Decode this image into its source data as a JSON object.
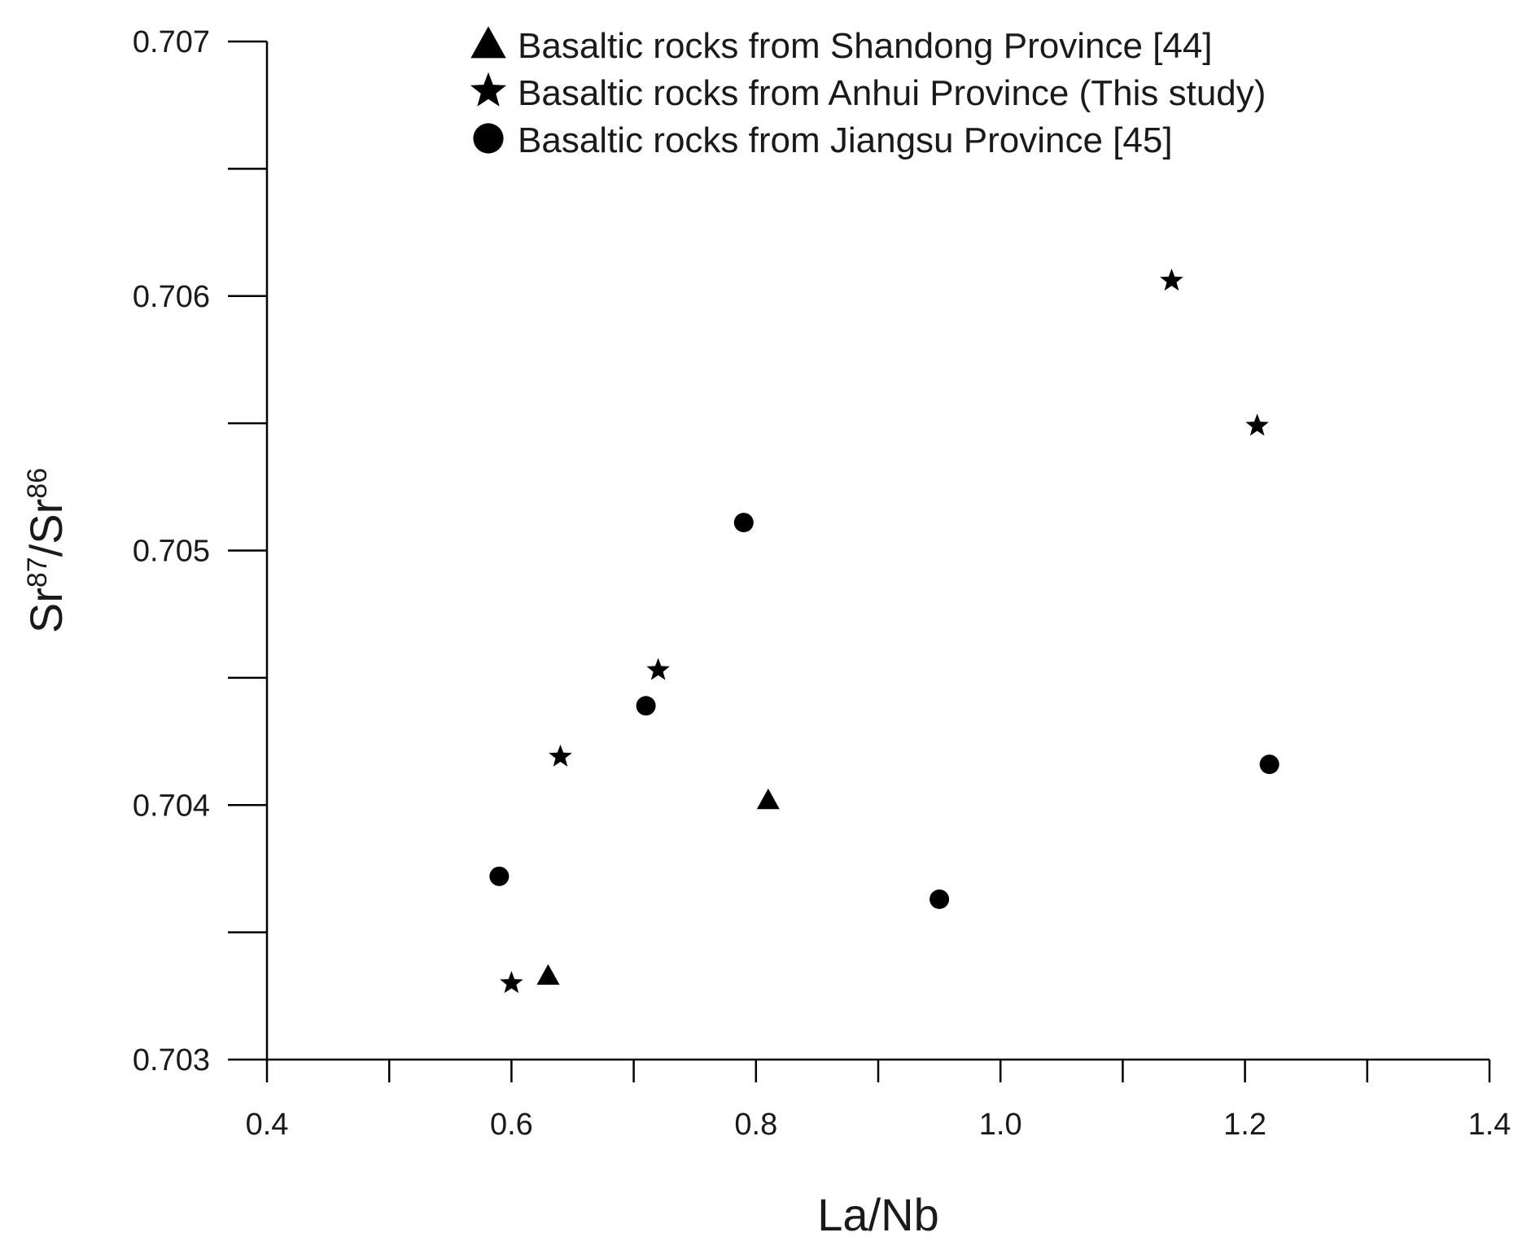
{
  "chart_data": {
    "type": "scatter",
    "xlabel": "La/Nb",
    "ylabel": {
      "main": "Sr",
      "sup1": "87",
      "sep": "/Sr",
      "sup2": "86"
    },
    "xlim": [
      0.4,
      1.4
    ],
    "ylim": [
      0.703,
      0.707
    ],
    "x_major_ticks": [
      0.4,
      0.6,
      0.8,
      1.0,
      1.2,
      1.4
    ],
    "x_tick_labels": [
      "0.4",
      "0.6",
      "0.8",
      "1.0",
      "1.2",
      "1.4"
    ],
    "x_minor_step": 0.1,
    "y_major_ticks": [
      0.703,
      0.704,
      0.705,
      0.706,
      0.707
    ],
    "y_tick_labels": [
      "0.703",
      "0.704",
      "0.705",
      "0.706",
      "0.707"
    ],
    "y_minor_step": 0.0005,
    "grid": false,
    "legend_position": "top-center",
    "series": [
      {
        "name": "Basaltic rocks from Shandong Province [44]",
        "marker": "triangle",
        "color": "#000000",
        "points": [
          [
            0.63,
            0.70333
          ],
          [
            0.81,
            0.70402
          ]
        ]
      },
      {
        "name": "Basaltic rocks from Anhui Province (This study)",
        "marker": "star",
        "color": "#000000",
        "points": [
          [
            0.6,
            0.7033
          ],
          [
            0.64,
            0.70419
          ],
          [
            0.72,
            0.70453
          ],
          [
            1.14,
            0.70606
          ],
          [
            1.21,
            0.70549
          ]
        ]
      },
      {
        "name": "Basaltic rocks from Jiangsu Province [45]",
        "marker": "circle",
        "color": "#000000",
        "points": [
          [
            0.59,
            0.70372
          ],
          [
            0.71,
            0.70439
          ],
          [
            0.79,
            0.70511
          ],
          [
            0.95,
            0.70363
          ],
          [
            1.22,
            0.70416
          ]
        ]
      }
    ]
  }
}
